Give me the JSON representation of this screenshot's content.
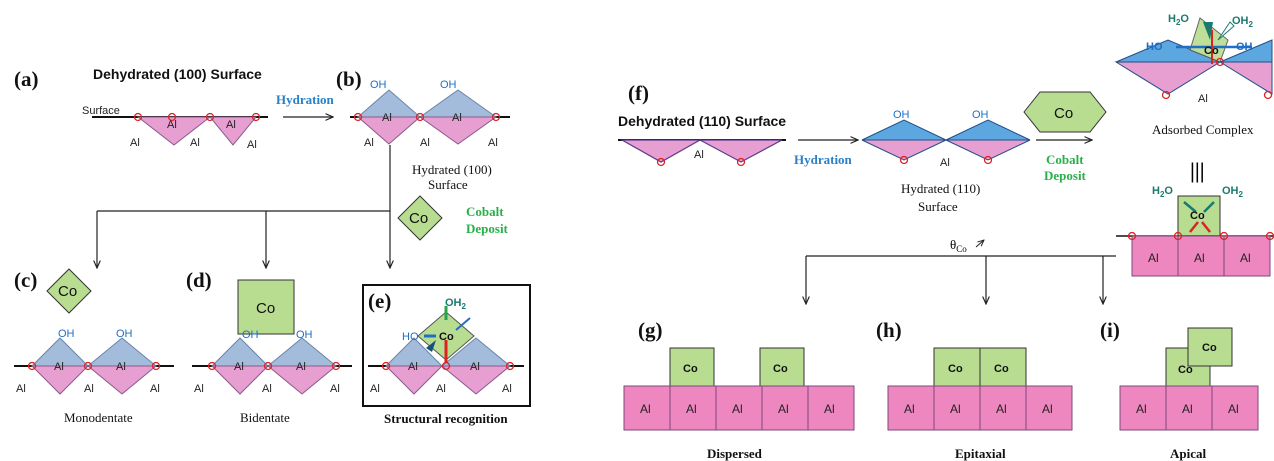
{
  "panel_labels": {
    "a": "(a)",
    "b": "(b)",
    "c": "(c)",
    "d": "(d)",
    "e": "(e)",
    "f": "(f)",
    "g": "(g)",
    "h": "(h)",
    "i": "(i)"
  },
  "text": {
    "dehydrated_100": "Dehydrated (100) Surface",
    "dehydrated_110": "Dehydrated (110) Surface",
    "surface": "Surface",
    "hydration": "Hydration",
    "hydrated_100_l1": "Hydrated (100)",
    "hydrated_100_l2": "Surface",
    "hydrated_110_l1": "Hydrated (110)",
    "hydrated_110_l2": "Surface",
    "cobalt": "Cobalt",
    "deposit": "Deposit",
    "co": "Co",
    "al": "Al",
    "oh": "OH",
    "oh2": "OH",
    "h2o": "H",
    "monodentate": "Monodentate",
    "bidentate": "Bidentate",
    "structural_recognition": "Structural recognition",
    "adsorbed_complex": "Adsorbed Complex",
    "equiv": "|||",
    "theta": "θ",
    "theta_sub": "Co",
    "ho": "HO",
    "dispersed": "Dispersed",
    "epitaxial": "Epitaxial",
    "apical": "Apical"
  }
}
